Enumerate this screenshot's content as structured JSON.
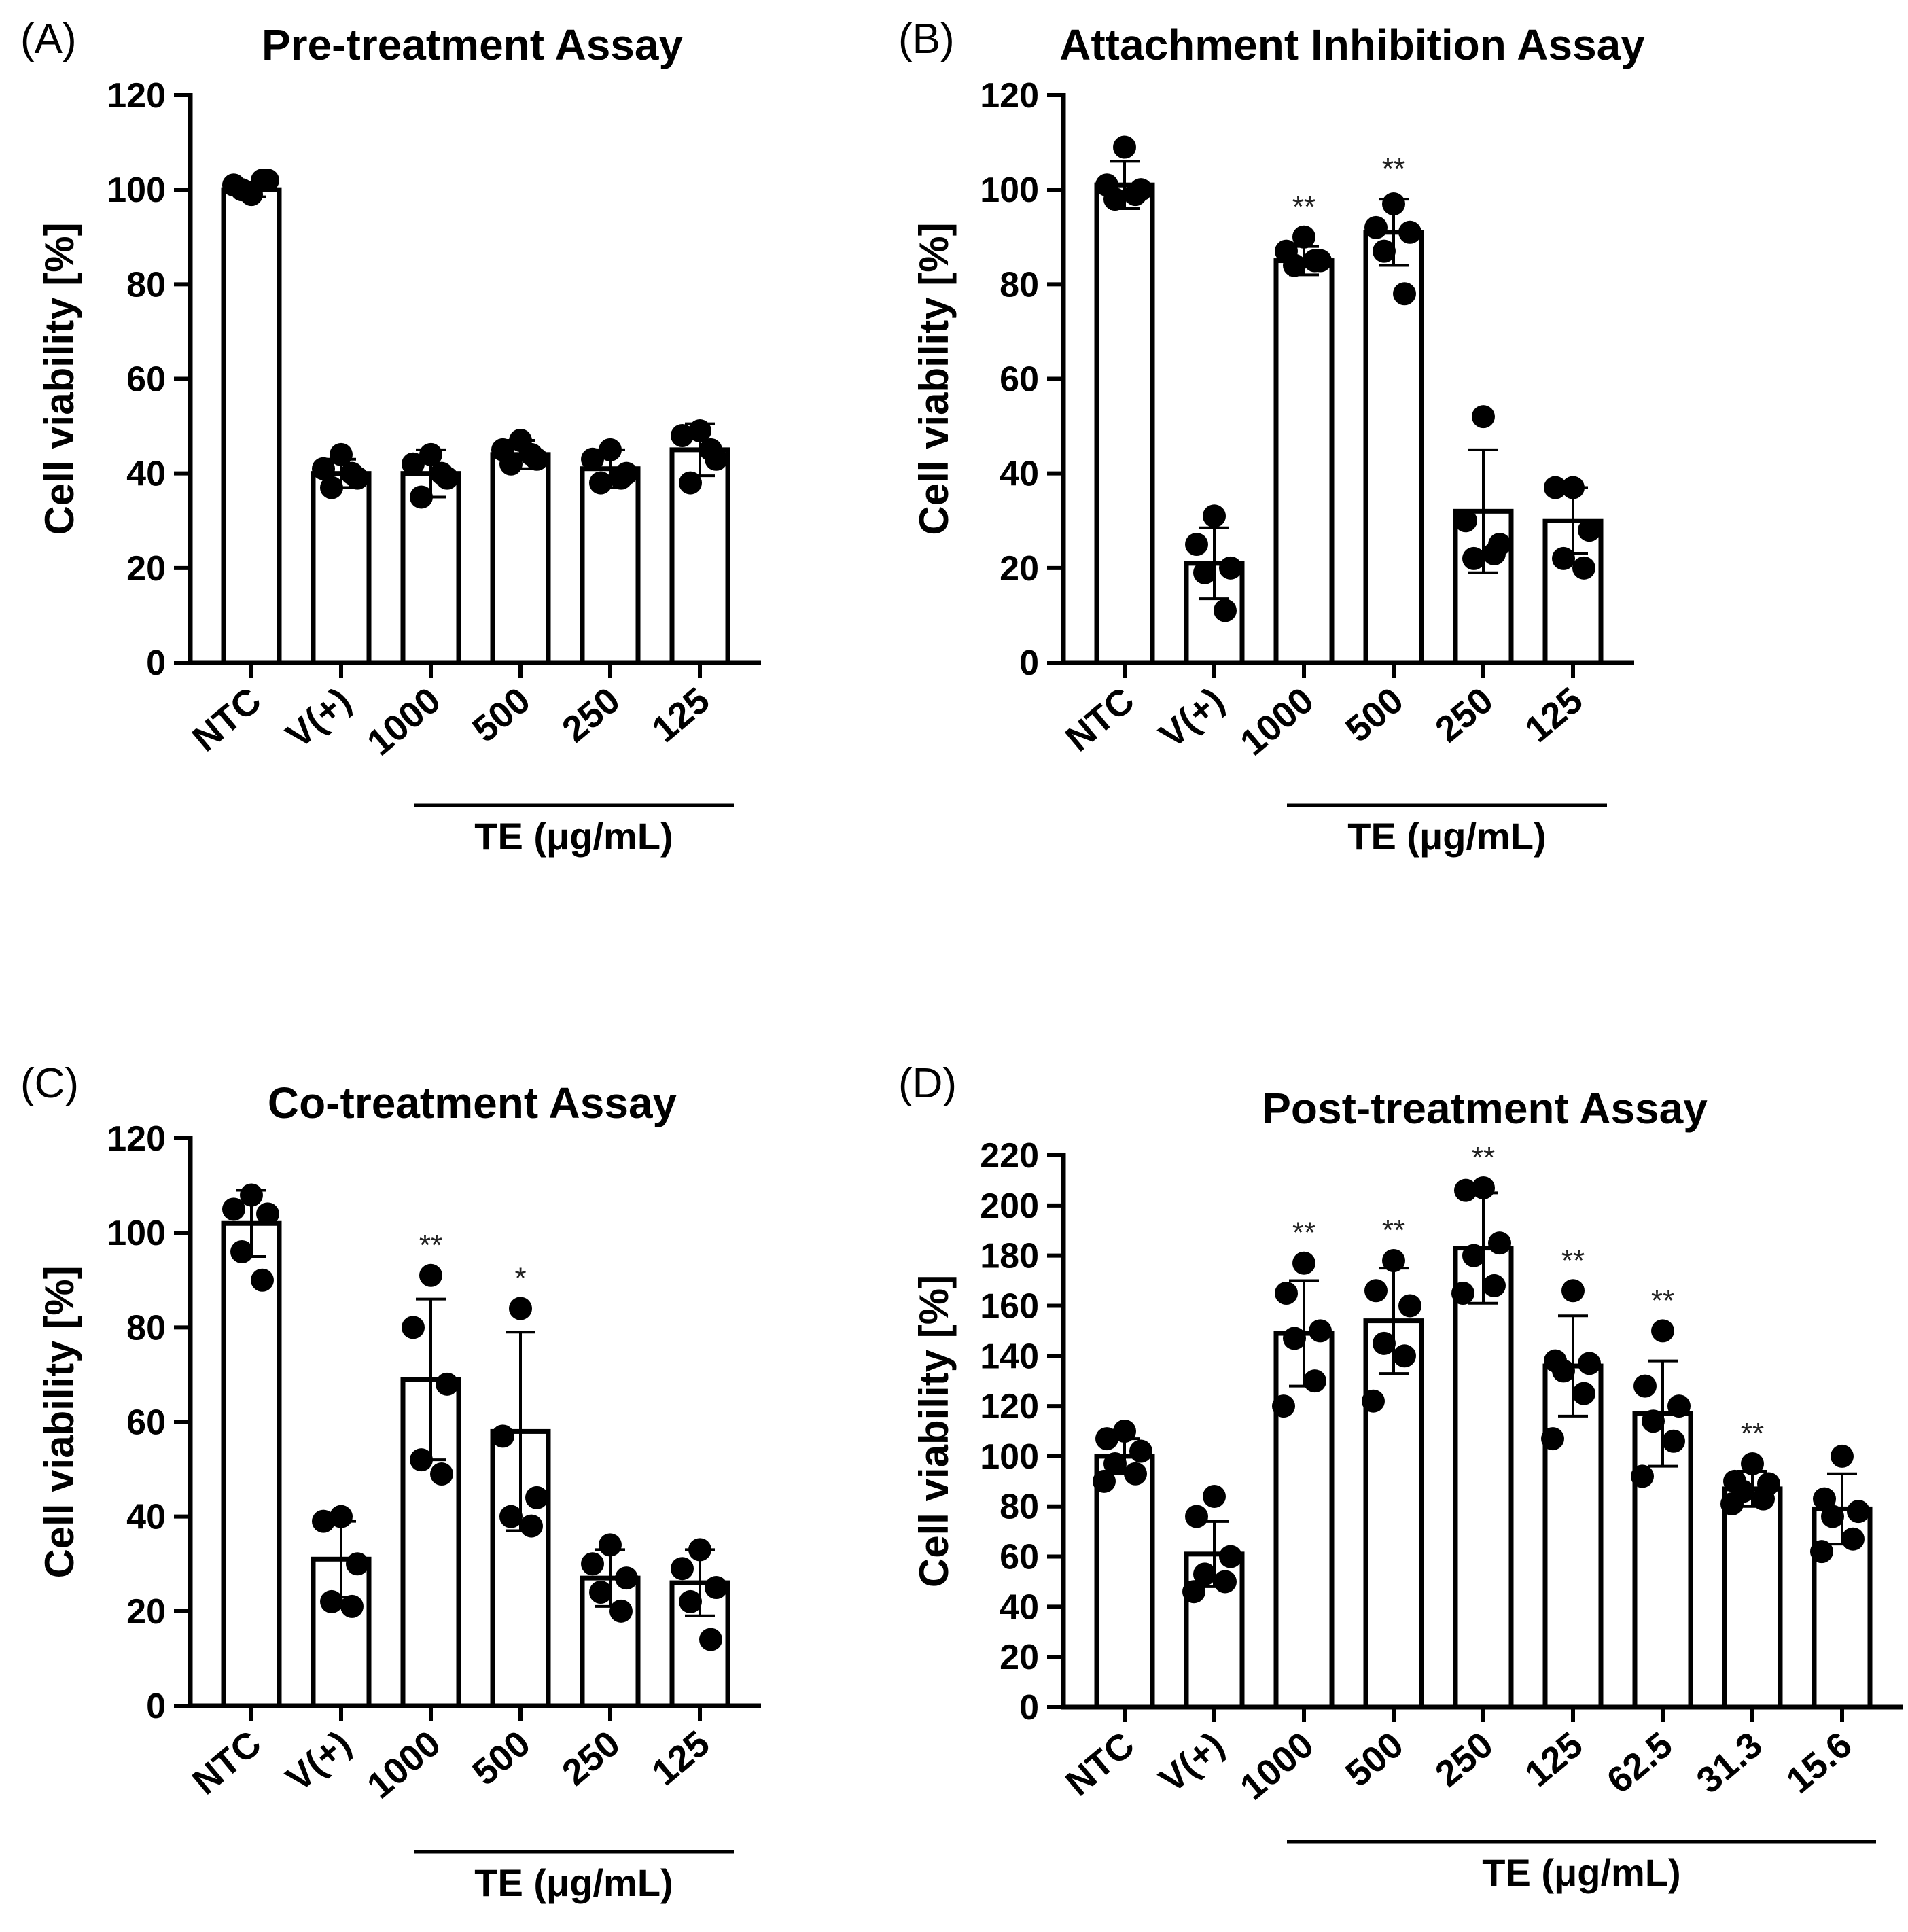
{
  "chart_data": [
    {
      "type": "bar",
      "panel": "(A)",
      "title": "Pre-treatment Assay",
      "ylabel": "Cell viability [%]",
      "xlabel": "",
      "group_label": "TE (μg/mL)",
      "group_range": [
        2,
        5
      ],
      "ylim": [
        0,
        120
      ],
      "yticks": [
        0,
        20,
        40,
        60,
        80,
        100,
        120
      ],
      "categories": [
        "NTC",
        "V(+)",
        "1000",
        "500",
        "250",
        "125"
      ],
      "values": [
        100,
        40,
        40,
        44,
        41,
        45
      ],
      "errors": [
        1.5,
        3,
        5,
        3,
        4,
        5.5
      ],
      "significance": [
        "",
        "",
        "",
        "",
        "",
        ""
      ],
      "points": [
        [
          99,
          101,
          102,
          100,
          102
        ],
        [
          44,
          41,
          39,
          37,
          40
        ],
        [
          44,
          42,
          39,
          35,
          40
        ],
        [
          47,
          45,
          43,
          42,
          44
        ],
        [
          45,
          43,
          40,
          38,
          39
        ],
        [
          49,
          48,
          43,
          38,
          45
        ]
      ]
    },
    {
      "type": "bar",
      "panel": "(B)",
      "title": "Attachment Inhibition Assay",
      "ylabel": "Cell viability [%]",
      "xlabel": "",
      "group_label": "TE (μg/mL)",
      "group_range": [
        2,
        5
      ],
      "ylim": [
        0,
        120
      ],
      "yticks": [
        0,
        20,
        40,
        60,
        80,
        100,
        120
      ],
      "categories": [
        "NTC",
        "V(+)",
        "1000",
        "500",
        "250",
        "125"
      ],
      "values": [
        101,
        21,
        85,
        91,
        32,
        30
      ],
      "errors": [
        5,
        7.5,
        3,
        7,
        13,
        7
      ],
      "significance": [
        "",
        "",
        "**",
        "**",
        "",
        ""
      ],
      "points": [
        [
          109,
          101,
          100,
          98,
          99
        ],
        [
          31,
          25,
          20,
          19,
          11
        ],
        [
          90,
          87,
          85,
          84,
          85
        ],
        [
          97,
          92,
          91,
          87,
          78
        ],
        [
          52,
          30,
          25,
          22,
          23
        ],
        [
          37,
          37,
          28,
          22,
          20
        ]
      ]
    },
    {
      "type": "bar",
      "panel": "(C)",
      "title": "Co-treatment Assay",
      "ylabel": "Cell viability [%]",
      "xlabel": "",
      "group_label": "TE (μg/mL)",
      "group_range": [
        2,
        5
      ],
      "ylim": [
        0,
        120
      ],
      "yticks": [
        0,
        20,
        40,
        60,
        80,
        100,
        120
      ],
      "categories": [
        "NTC",
        "V(+)",
        "1000",
        "500",
        "250",
        "125"
      ],
      "values": [
        102,
        31,
        69,
        58,
        27,
        26
      ],
      "errors": [
        7,
        8,
        17,
        21,
        6,
        7
      ],
      "significance": [
        "",
        "",
        "**",
        "*",
        "",
        ""
      ],
      "points": [
        [
          108,
          105,
          104,
          96,
          90
        ],
        [
          40,
          39,
          30,
          22,
          21
        ],
        [
          91,
          80,
          68,
          52,
          49
        ],
        [
          84,
          57,
          44,
          40,
          38
        ],
        [
          34,
          30,
          27,
          24,
          20
        ],
        [
          33,
          29,
          25,
          22,
          14
        ]
      ]
    },
    {
      "type": "bar",
      "panel": "(D)",
      "title": "Post-treatment Assay",
      "ylabel": "Cell viability [%]",
      "xlabel": "",
      "group_label": "TE (μg/mL)",
      "group_range": [
        2,
        8
      ],
      "ylim": [
        0,
        220
      ],
      "yticks": [
        0,
        20,
        40,
        60,
        80,
        100,
        120,
        140,
        160,
        180,
        200,
        220
      ],
      "categories": [
        "NTC",
        "V(+)",
        "1000",
        "500",
        "250",
        "125",
        "62.5",
        "31.3",
        "15.6"
      ],
      "values": [
        100,
        61,
        149,
        154,
        183,
        136,
        117,
        87,
        79
      ],
      "errors": [
        7,
        13,
        21,
        21,
        22,
        20,
        21,
        7,
        14
      ],
      "significance": [
        "",
        "",
        "**",
        "**",
        "**",
        "**",
        "**",
        "**",
        ""
      ],
      "points": [
        [
          110,
          107,
          102,
          97,
          93,
          90
        ],
        [
          84,
          76,
          60,
          53,
          50,
          46
        ],
        [
          177,
          165,
          150,
          147,
          130,
          120
        ],
        [
          178,
          166,
          160,
          145,
          140,
          122
        ],
        [
          207,
          206,
          185,
          180,
          168,
          165
        ],
        [
          166,
          138,
          137,
          134,
          125,
          107
        ],
        [
          150,
          128,
          120,
          114,
          106,
          92
        ],
        [
          97,
          90,
          89,
          86,
          83,
          81
        ],
        [
          100,
          83,
          78,
          76,
          67,
          62
        ]
      ]
    }
  ]
}
